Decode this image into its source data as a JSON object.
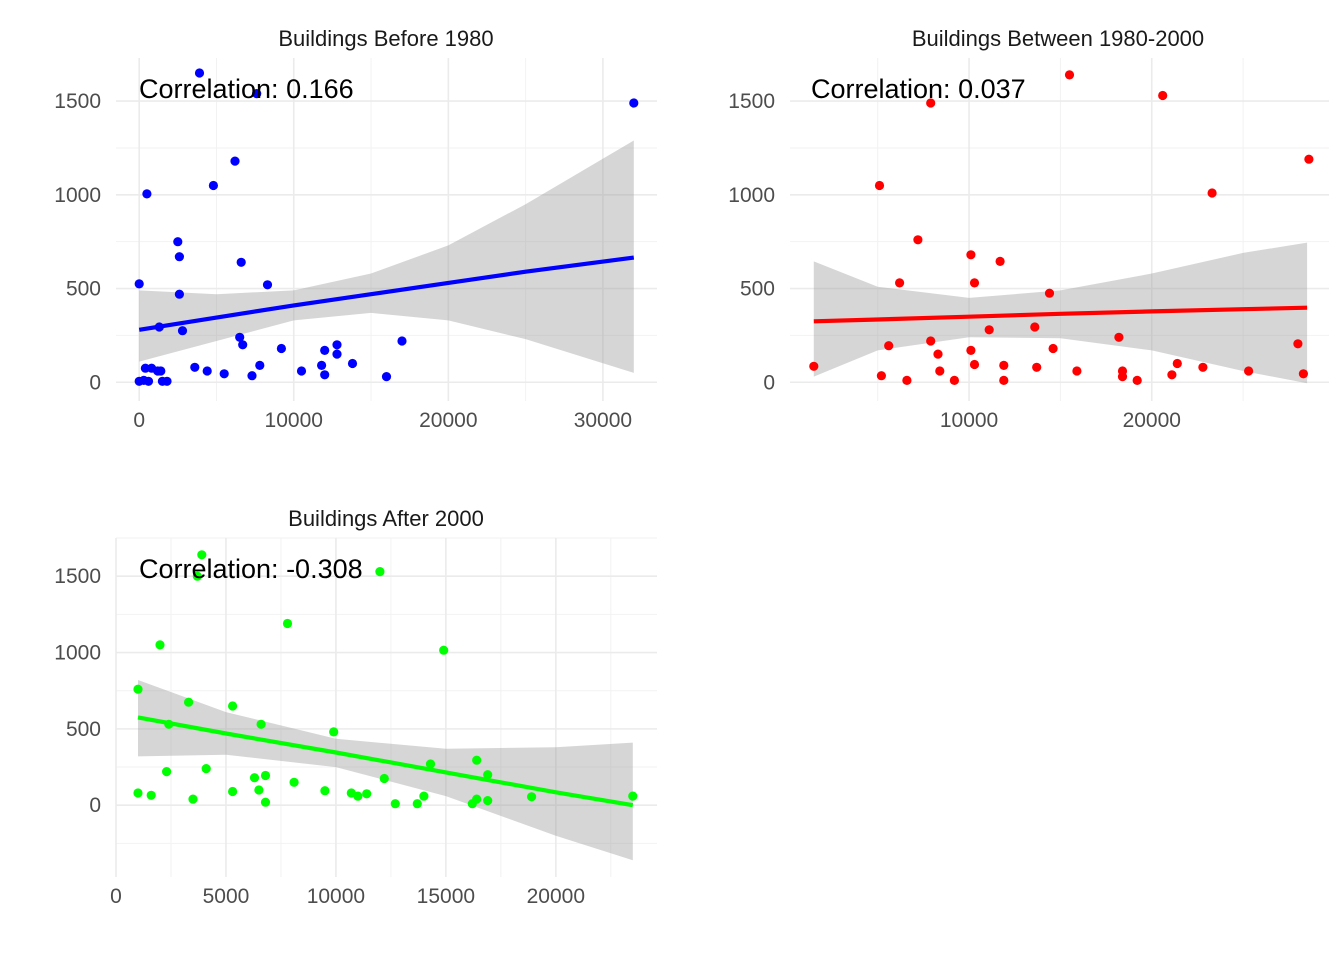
{
  "chart_data": [
    {
      "type": "scatter",
      "title": "Buildings Before 1980",
      "annotation": "Correlation: 0.166",
      "color": "#0000ff",
      "xlabel": "",
      "ylabel": "",
      "xlim": [
        -1500,
        33500
      ],
      "ylim": [
        -100,
        1730
      ],
      "xticks": [
        0,
        10000,
        20000,
        30000
      ],
      "yticks": [
        0,
        500,
        1000,
        1500
      ],
      "xtick_labels": [
        "0",
        "10000",
        "20000",
        "30000"
      ],
      "ytick_labels": [
        "0",
        "500",
        "1000",
        "1500"
      ],
      "grid": true,
      "legend": "none",
      "regression": {
        "x": [
          0,
          5000,
          10000,
          15000,
          20000,
          25000,
          32000
        ],
        "y": [
          280,
          345,
          410,
          470,
          530,
          590,
          665
        ],
        "lower": [
          110,
          220,
          330,
          370,
          330,
          230,
          50
        ],
        "upper": [
          490,
          470,
          490,
          580,
          730,
          950,
          1290
        ]
      },
      "points": [
        {
          "x": 0,
          "y": 525
        },
        {
          "x": 0,
          "y": 5
        },
        {
          "x": 300,
          "y": 10
        },
        {
          "x": 400,
          "y": 75
        },
        {
          "x": 500,
          "y": 1005
        },
        {
          "x": 600,
          "y": 5
        },
        {
          "x": 800,
          "y": 75
        },
        {
          "x": 1200,
          "y": 60
        },
        {
          "x": 1300,
          "y": 295
        },
        {
          "x": 1400,
          "y": 60
        },
        {
          "x": 1500,
          "y": 5
        },
        {
          "x": 1800,
          "y": 5
        },
        {
          "x": 2500,
          "y": 750
        },
        {
          "x": 2600,
          "y": 670
        },
        {
          "x": 2600,
          "y": 470
        },
        {
          "x": 2800,
          "y": 275
        },
        {
          "x": 3600,
          "y": 80
        },
        {
          "x": 3900,
          "y": 1650
        },
        {
          "x": 4400,
          "y": 60
        },
        {
          "x": 4800,
          "y": 1050
        },
        {
          "x": 5500,
          "y": 45
        },
        {
          "x": 6200,
          "y": 1180
        },
        {
          "x": 6500,
          "y": 240
        },
        {
          "x": 6600,
          "y": 640
        },
        {
          "x": 6700,
          "y": 200
        },
        {
          "x": 7300,
          "y": 35
        },
        {
          "x": 7600,
          "y": 1540
        },
        {
          "x": 7800,
          "y": 90
        },
        {
          "x": 8300,
          "y": 520
        },
        {
          "x": 9200,
          "y": 180
        },
        {
          "x": 10500,
          "y": 60
        },
        {
          "x": 11800,
          "y": 90
        },
        {
          "x": 12000,
          "y": 40
        },
        {
          "x": 12000,
          "y": 170
        },
        {
          "x": 12800,
          "y": 200
        },
        {
          "x": 12800,
          "y": 150
        },
        {
          "x": 13800,
          "y": 100
        },
        {
          "x": 16000,
          "y": 30
        },
        {
          "x": 17000,
          "y": 220
        },
        {
          "x": 32000,
          "y": 1490
        }
      ]
    },
    {
      "type": "scatter",
      "title": "Buildings Between 1980-2000",
      "annotation": "Correlation: 0.037",
      "color": "#ff0000",
      "xlabel": "",
      "ylabel": "",
      "xlim": [
        200,
        29700
      ],
      "ylim": [
        -100,
        1730
      ],
      "xticks": [
        10000,
        20000
      ],
      "yticks": [
        0,
        500,
        1000,
        1500
      ],
      "xtick_labels": [
        "10000",
        "20000"
      ],
      "ytick_labels": [
        "0",
        "500",
        "1000",
        "1500"
      ],
      "grid": true,
      "legend": "none",
      "regression": {
        "x": [
          1500,
          5000,
          10000,
          15000,
          20000,
          25000,
          28500
        ],
        "y": [
          325,
          335,
          350,
          365,
          378,
          390,
          398
        ],
        "lower": [
          30,
          170,
          240,
          235,
          170,
          60,
          -5
        ],
        "upper": [
          645,
          510,
          450,
          490,
          580,
          690,
          745
        ]
      },
      "points": [
        {
          "x": 1500,
          "y": 85
        },
        {
          "x": 5100,
          "y": 1050
        },
        {
          "x": 5200,
          "y": 35
        },
        {
          "x": 5600,
          "y": 195
        },
        {
          "x": 6200,
          "y": 530
        },
        {
          "x": 6600,
          "y": 10
        },
        {
          "x": 7200,
          "y": 760
        },
        {
          "x": 7900,
          "y": 1490
        },
        {
          "x": 7900,
          "y": 220
        },
        {
          "x": 8300,
          "y": 150
        },
        {
          "x": 8400,
          "y": 60
        },
        {
          "x": 9200,
          "y": 10
        },
        {
          "x": 10100,
          "y": 680
        },
        {
          "x": 10100,
          "y": 170
        },
        {
          "x": 10300,
          "y": 530
        },
        {
          "x": 10300,
          "y": 95
        },
        {
          "x": 11100,
          "y": 280
        },
        {
          "x": 11700,
          "y": 645
        },
        {
          "x": 11900,
          "y": 90
        },
        {
          "x": 11900,
          "y": 10
        },
        {
          "x": 13600,
          "y": 295
        },
        {
          "x": 13700,
          "y": 80
        },
        {
          "x": 14400,
          "y": 475
        },
        {
          "x": 14600,
          "y": 180
        },
        {
          "x": 15500,
          "y": 1640
        },
        {
          "x": 15900,
          "y": 60
        },
        {
          "x": 18200,
          "y": 240
        },
        {
          "x": 18400,
          "y": 60
        },
        {
          "x": 18400,
          "y": 30
        },
        {
          "x": 19200,
          "y": 10
        },
        {
          "x": 20600,
          "y": 1530
        },
        {
          "x": 21100,
          "y": 40
        },
        {
          "x": 21400,
          "y": 100
        },
        {
          "x": 22800,
          "y": 80
        },
        {
          "x": 23300,
          "y": 1010
        },
        {
          "x": 25300,
          "y": 60
        },
        {
          "x": 28000,
          "y": 205
        },
        {
          "x": 28300,
          "y": 45
        },
        {
          "x": 28600,
          "y": 1190
        }
      ]
    },
    {
      "type": "scatter",
      "title": "Buildings After 2000",
      "annotation": "Correlation: -0.308",
      "color": "#00ff00",
      "xlabel": "",
      "ylabel": "",
      "xlim": [
        0,
        24600
      ],
      "ylim": [
        -470,
        1750
      ],
      "xticks": [
        0,
        5000,
        10000,
        15000,
        20000
      ],
      "yticks": [
        0,
        500,
        1000,
        1500
      ],
      "xtick_labels": [
        "0",
        "5000",
        "10000",
        "15000",
        "20000"
      ],
      "ytick_labels": [
        "0",
        "500",
        "1000",
        "1500"
      ],
      "grid": true,
      "legend": "none",
      "regression": {
        "x": [
          1000,
          5000,
          10000,
          15000,
          20000,
          23500
        ],
        "y": [
          575,
          470,
          345,
          215,
          85,
          0
        ],
        "lower": [
          320,
          330,
          250,
          60,
          -200,
          -360
        ],
        "upper": [
          820,
          610,
          435,
          370,
          380,
          410
        ]
      },
      "points": [
        {
          "x": 1000,
          "y": 760
        },
        {
          "x": 1000,
          "y": 80
        },
        {
          "x": 1600,
          "y": 65
        },
        {
          "x": 2000,
          "y": 1050
        },
        {
          "x": 2300,
          "y": 220
        },
        {
          "x": 2400,
          "y": 530
        },
        {
          "x": 3300,
          "y": 675
        },
        {
          "x": 3500,
          "y": 40
        },
        {
          "x": 3700,
          "y": 1500
        },
        {
          "x": 3900,
          "y": 1640
        },
        {
          "x": 4100,
          "y": 240
        },
        {
          "x": 5300,
          "y": 650
        },
        {
          "x": 5300,
          "y": 90
        },
        {
          "x": 6300,
          "y": 180
        },
        {
          "x": 6500,
          "y": 100
        },
        {
          "x": 6600,
          "y": 530
        },
        {
          "x": 6800,
          "y": 195
        },
        {
          "x": 6800,
          "y": 20
        },
        {
          "x": 7800,
          "y": 1190
        },
        {
          "x": 8100,
          "y": 150
        },
        {
          "x": 9500,
          "y": 95
        },
        {
          "x": 9900,
          "y": 480
        },
        {
          "x": 10700,
          "y": 80
        },
        {
          "x": 11000,
          "y": 60
        },
        {
          "x": 11400,
          "y": 75
        },
        {
          "x": 12000,
          "y": 1530
        },
        {
          "x": 12200,
          "y": 175
        },
        {
          "x": 12700,
          "y": 10
        },
        {
          "x": 13700,
          "y": 10
        },
        {
          "x": 14000,
          "y": 60
        },
        {
          "x": 14300,
          "y": 270
        },
        {
          "x": 14900,
          "y": 1015
        },
        {
          "x": 16200,
          "y": 10
        },
        {
          "x": 16400,
          "y": 40
        },
        {
          "x": 16400,
          "y": 295
        },
        {
          "x": 16900,
          "y": 30
        },
        {
          "x": 16900,
          "y": 200
        },
        {
          "x": 18900,
          "y": 55
        },
        {
          "x": 23500,
          "y": 60
        }
      ]
    }
  ]
}
